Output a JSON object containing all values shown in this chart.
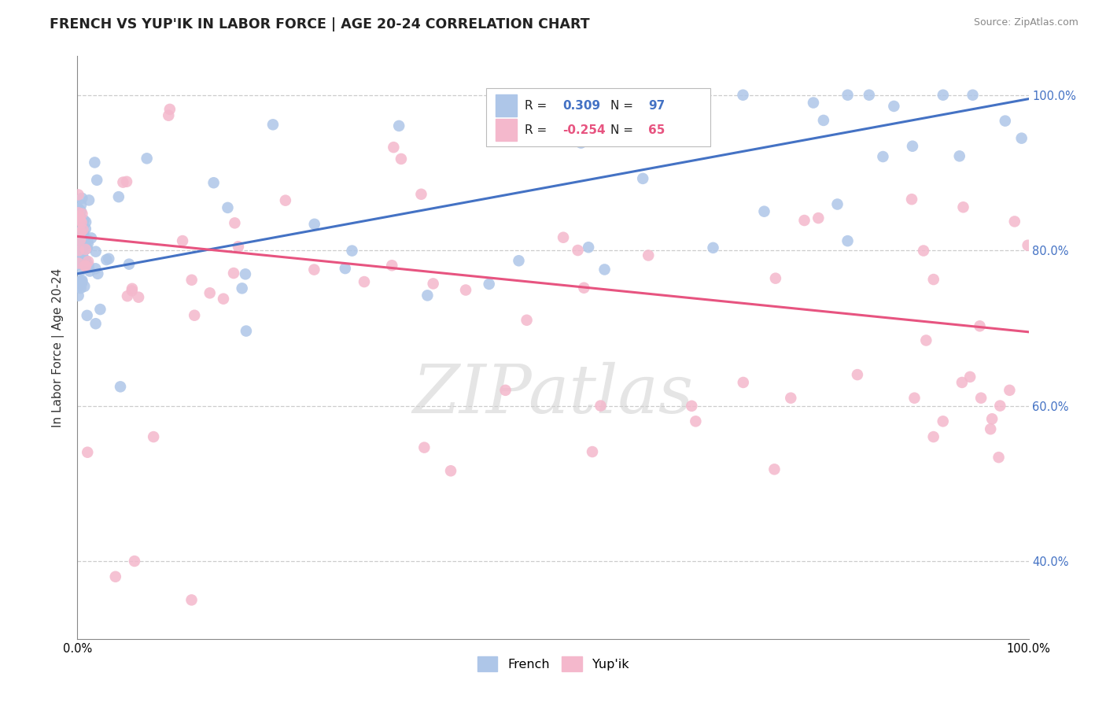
{
  "title": "FRENCH VS YUP'IK IN LABOR FORCE | AGE 20-24 CORRELATION CHART",
  "source_text": "Source: ZipAtlas.com",
  "ylabel": "In Labor Force | Age 20-24",
  "watermark": "ZIPatlas",
  "french_R": 0.309,
  "french_N": 97,
  "yupik_R": -0.254,
  "yupik_N": 65,
  "french_color": "#aec6e8",
  "french_line_color": "#4472c4",
  "yupik_color": "#f4b8cc",
  "yupik_line_color": "#e75480",
  "bg_color": "#ffffff",
  "grid_color": "#cccccc",
  "title_fontsize": 12.5,
  "axis_label_fontsize": 11,
  "tick_fontsize": 10.5,
  "legend_fontsize": 11,
  "xlim": [
    0.0,
    1.0
  ],
  "ylim": [
    0.3,
    1.05
  ],
  "y_ticks": [
    0.4,
    0.6,
    0.8,
    1.0
  ],
  "y_tick_labels": [
    "40.0%",
    "60.0%",
    "80.0%",
    "100.0%"
  ],
  "x_ticks": [
    0.0,
    1.0
  ],
  "x_tick_labels": [
    "0.0%",
    "100.0%"
  ],
  "french_trend_start": 0.77,
  "french_trend_end": 0.995,
  "yupik_trend_start": 0.818,
  "yupik_trend_end": 0.695
}
